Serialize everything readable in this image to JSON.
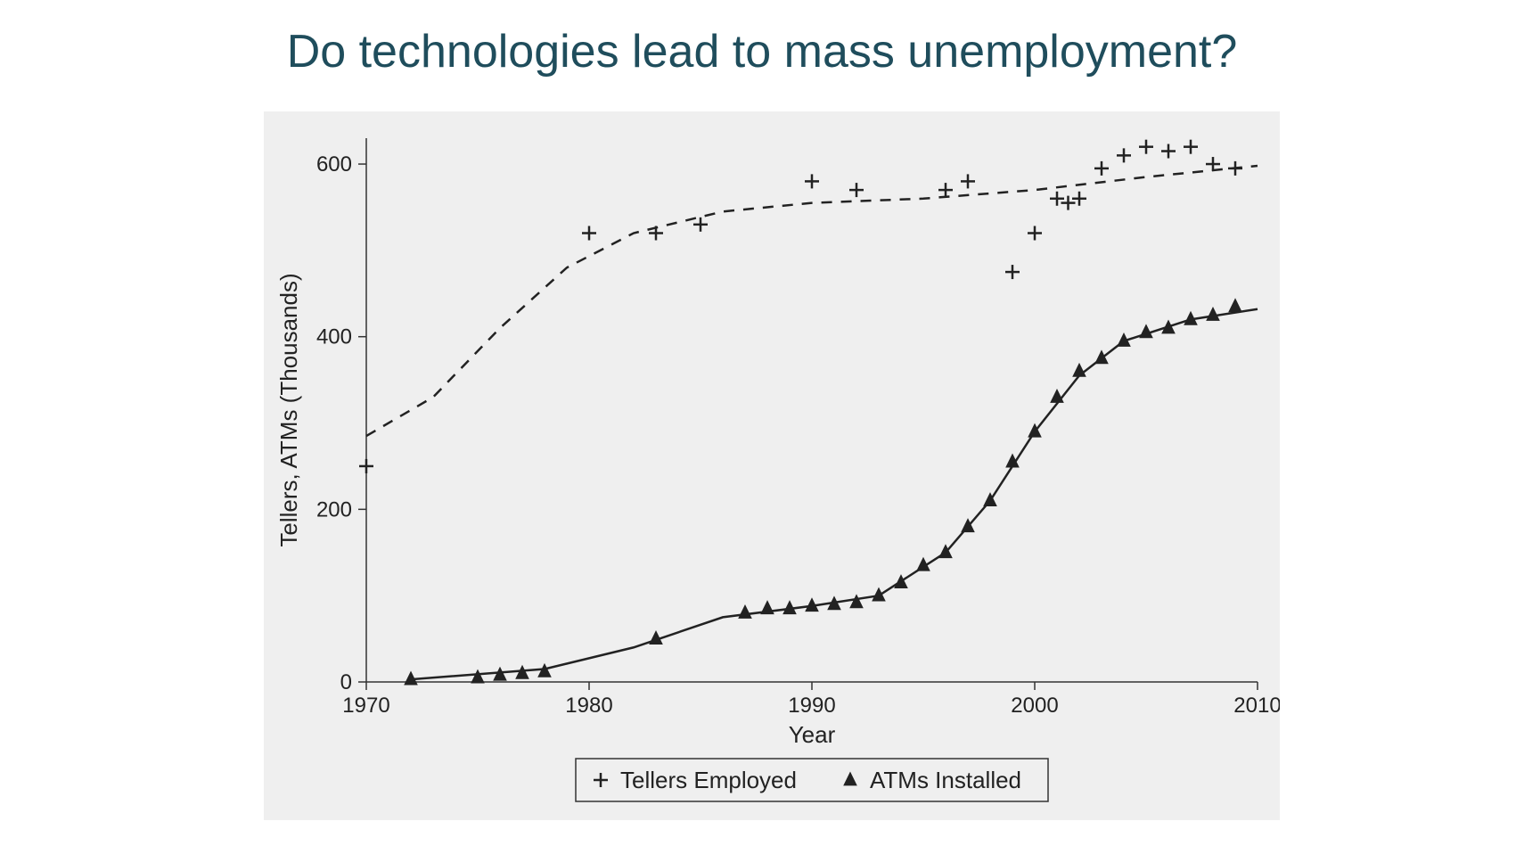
{
  "title": "Do technologies lead to mass unemployment?",
  "chart": {
    "type": "scatter-with-trend",
    "background_color": "#efefef",
    "plot_background": "#efefef",
    "axis_color": "#333333",
    "marker_color": "#222222",
    "line_color": "#222222",
    "xlabel": "Year",
    "ylabel": "Tellers, ATMs (Thousands)",
    "label_fontsize": 26,
    "tick_fontsize": 24,
    "xlim": [
      1970,
      2010
    ],
    "ylim": [
      0,
      630
    ],
    "xticks": [
      1970,
      1980,
      1990,
      2000,
      2010
    ],
    "yticks": [
      0,
      200,
      400,
      600
    ],
    "series": [
      {
        "name": "Tellers Employed",
        "marker": "plus",
        "trend_style": "dashed",
        "points": [
          {
            "x": 1970,
            "y": 250
          },
          {
            "x": 1980,
            "y": 520
          },
          {
            "x": 1983,
            "y": 520
          },
          {
            "x": 1985,
            "y": 530
          },
          {
            "x": 1990,
            "y": 580
          },
          {
            "x": 1992,
            "y": 570
          },
          {
            "x": 1996,
            "y": 570
          },
          {
            "x": 1997,
            "y": 580
          },
          {
            "x": 1999,
            "y": 475
          },
          {
            "x": 2000,
            "y": 520
          },
          {
            "x": 2001,
            "y": 560
          },
          {
            "x": 2001.5,
            "y": 555
          },
          {
            "x": 2002,
            "y": 560
          },
          {
            "x": 2003,
            "y": 595
          },
          {
            "x": 2004,
            "y": 610
          },
          {
            "x": 2005,
            "y": 620
          },
          {
            "x": 2006,
            "y": 615
          },
          {
            "x": 2007,
            "y": 620
          },
          {
            "x": 2008,
            "y": 600
          },
          {
            "x": 2009,
            "y": 595
          }
        ],
        "trend": [
          {
            "x": 1970,
            "y": 285
          },
          {
            "x": 1973,
            "y": 330
          },
          {
            "x": 1976,
            "y": 410
          },
          {
            "x": 1979,
            "y": 480
          },
          {
            "x": 1982,
            "y": 520
          },
          {
            "x": 1986,
            "y": 545
          },
          {
            "x": 1990,
            "y": 555
          },
          {
            "x": 1995,
            "y": 560
          },
          {
            "x": 2000,
            "y": 570
          },
          {
            "x": 2005,
            "y": 585
          },
          {
            "x": 2010,
            "y": 598
          }
        ]
      },
      {
        "name": "ATMs Installed",
        "marker": "triangle",
        "trend_style": "solid",
        "points": [
          {
            "x": 1972,
            "y": 3
          },
          {
            "x": 1975,
            "y": 5
          },
          {
            "x": 1976,
            "y": 8
          },
          {
            "x": 1977,
            "y": 10
          },
          {
            "x": 1978,
            "y": 12
          },
          {
            "x": 1983,
            "y": 50
          },
          {
            "x": 1987,
            "y": 80
          },
          {
            "x": 1988,
            "y": 85
          },
          {
            "x": 1989,
            "y": 85
          },
          {
            "x": 1990,
            "y": 88
          },
          {
            "x": 1991,
            "y": 90
          },
          {
            "x": 1992,
            "y": 92
          },
          {
            "x": 1993,
            "y": 100
          },
          {
            "x": 1994,
            "y": 115
          },
          {
            "x": 1995,
            "y": 135
          },
          {
            "x": 1996,
            "y": 150
          },
          {
            "x": 1997,
            "y": 180
          },
          {
            "x": 1998,
            "y": 210
          },
          {
            "x": 1999,
            "y": 255
          },
          {
            "x": 2000,
            "y": 290
          },
          {
            "x": 2001,
            "y": 330
          },
          {
            "x": 2002,
            "y": 360
          },
          {
            "x": 2003,
            "y": 375
          },
          {
            "x": 2004,
            "y": 395
          },
          {
            "x": 2005,
            "y": 405
          },
          {
            "x": 2006,
            "y": 410
          },
          {
            "x": 2007,
            "y": 420
          },
          {
            "x": 2008,
            "y": 425
          },
          {
            "x": 2009,
            "y": 435
          }
        ],
        "trend": [
          {
            "x": 1972,
            "y": 3
          },
          {
            "x": 1978,
            "y": 15
          },
          {
            "x": 1982,
            "y": 40
          },
          {
            "x": 1986,
            "y": 75
          },
          {
            "x": 1990,
            "y": 88
          },
          {
            "x": 1993,
            "y": 100
          },
          {
            "x": 1996,
            "y": 150
          },
          {
            "x": 1998,
            "y": 210
          },
          {
            "x": 2000,
            "y": 290
          },
          {
            "x": 2002,
            "y": 355
          },
          {
            "x": 2004,
            "y": 395
          },
          {
            "x": 2007,
            "y": 420
          },
          {
            "x": 2010,
            "y": 432
          }
        ]
      }
    ],
    "legend": {
      "items": [
        {
          "marker": "plus",
          "label": "Tellers Employed"
        },
        {
          "marker": "triangle",
          "label": "ATMs Installed"
        }
      ]
    }
  }
}
